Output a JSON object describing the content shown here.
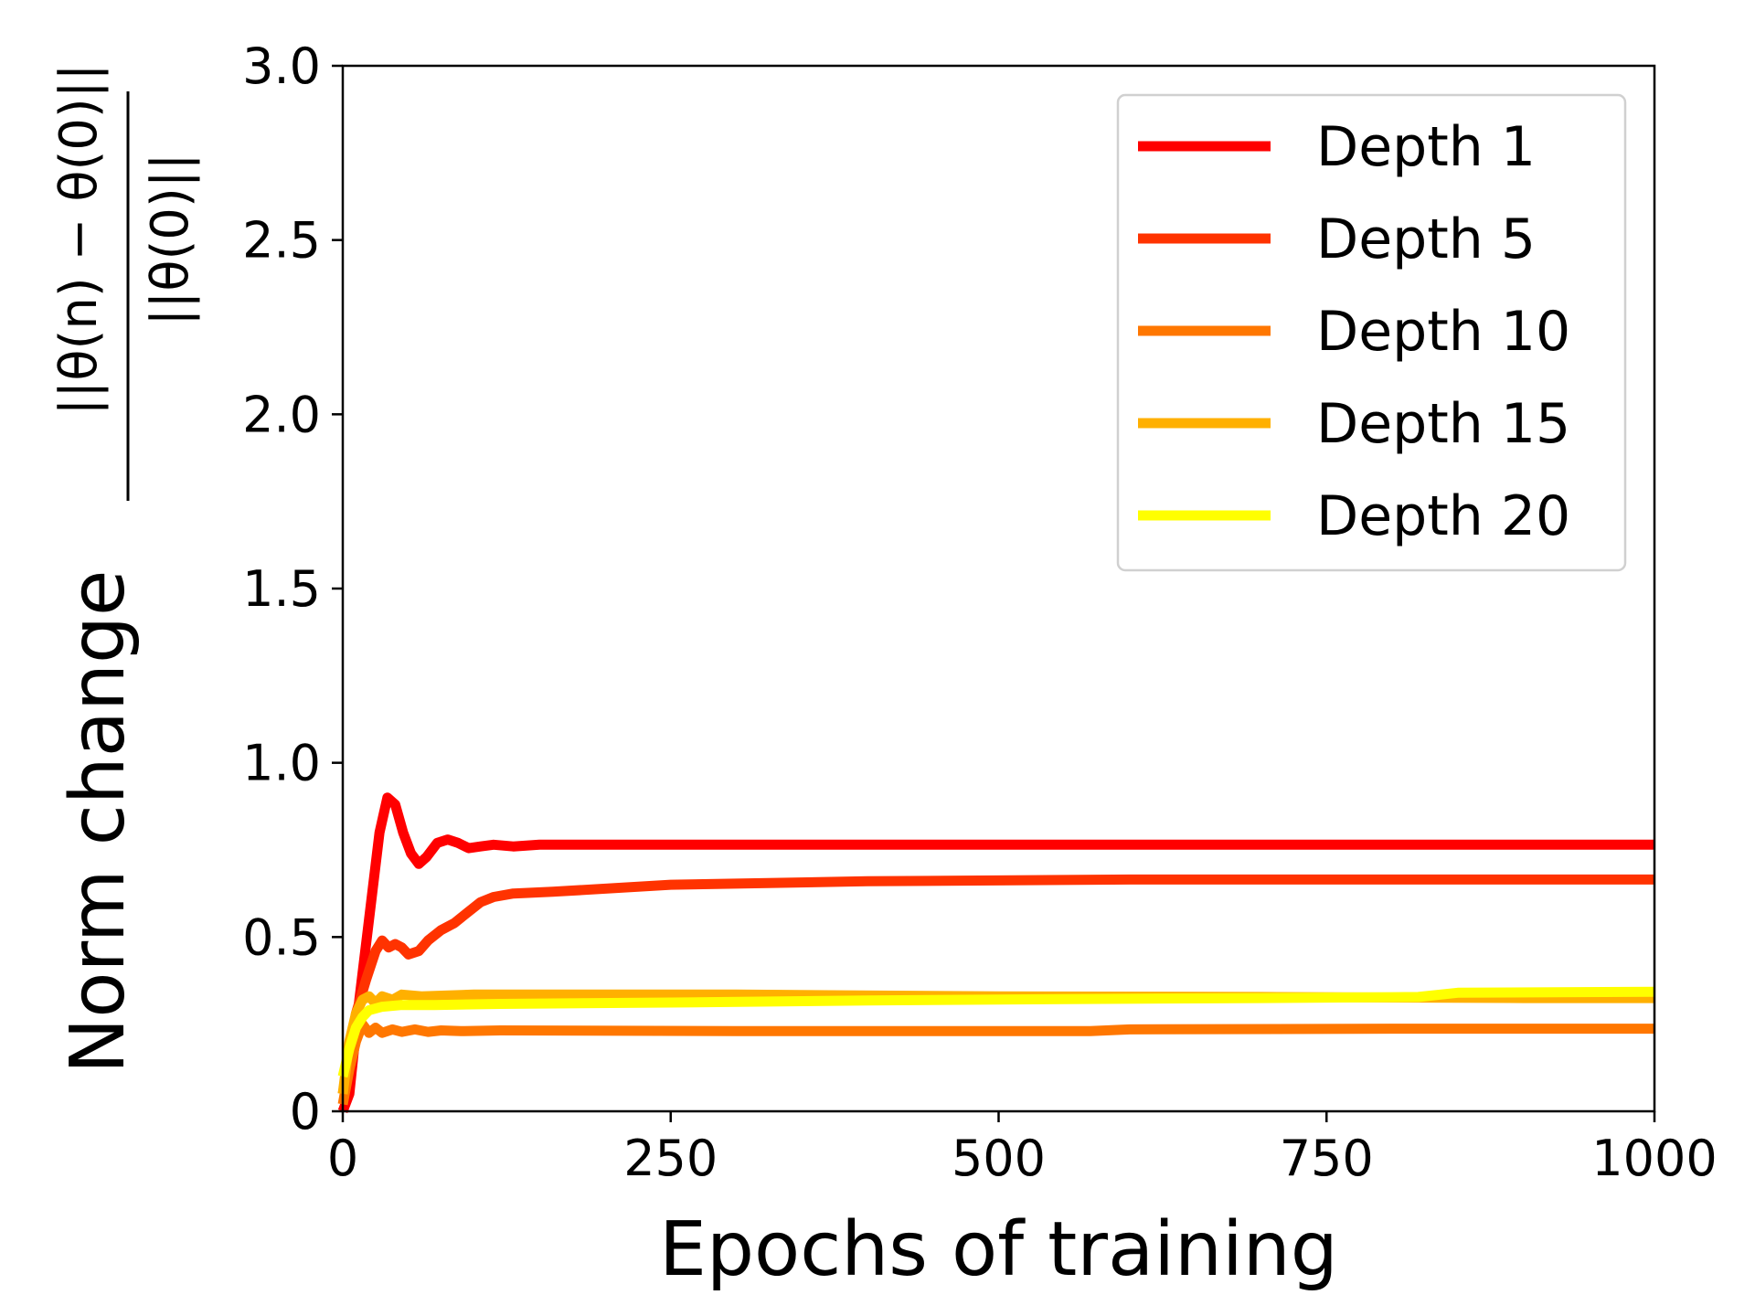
{
  "chart_data": {
    "type": "line",
    "xlabel": "Epochs of training",
    "ylabel": "Norm change",
    "ylabel_fraction": {
      "numerator": "||θ(n) − θ(0)||",
      "denominator": "||θ(0)||"
    },
    "xlim": [
      0,
      1000
    ],
    "ylim": [
      0,
      3.0
    ],
    "x_ticks": [
      "0",
      "250",
      "500",
      "750",
      "1000"
    ],
    "y_ticks": [
      "0",
      "0.5",
      "1.0",
      "1.5",
      "2.0",
      "2.5",
      "3.0"
    ],
    "grid": false,
    "legend_position": "top-right",
    "series": [
      {
        "name": "Depth 1",
        "color": "#ff0000",
        "points": [
          [
            0,
            0
          ],
          [
            5,
            0.05
          ],
          [
            12,
            0.3
          ],
          [
            20,
            0.55
          ],
          [
            28,
            0.8
          ],
          [
            34,
            0.9
          ],
          [
            40,
            0.88
          ],
          [
            46,
            0.8
          ],
          [
            52,
            0.74
          ],
          [
            58,
            0.71
          ],
          [
            64,
            0.73
          ],
          [
            72,
            0.77
          ],
          [
            80,
            0.78
          ],
          [
            88,
            0.77
          ],
          [
            96,
            0.755
          ],
          [
            105,
            0.76
          ],
          [
            115,
            0.765
          ],
          [
            130,
            0.76
          ],
          [
            150,
            0.765
          ],
          [
            200,
            0.765
          ],
          [
            400,
            0.765
          ],
          [
            600,
            0.765
          ],
          [
            800,
            0.765
          ],
          [
            1000,
            0.765
          ]
        ]
      },
      {
        "name": "Depth 5",
        "color": "#ff3300",
        "points": [
          [
            0,
            0.05
          ],
          [
            5,
            0.15
          ],
          [
            10,
            0.28
          ],
          [
            18,
            0.38
          ],
          [
            25,
            0.46
          ],
          [
            30,
            0.49
          ],
          [
            35,
            0.47
          ],
          [
            40,
            0.48
          ],
          [
            45,
            0.47
          ],
          [
            50,
            0.45
          ],
          [
            58,
            0.46
          ],
          [
            65,
            0.49
          ],
          [
            75,
            0.52
          ],
          [
            85,
            0.54
          ],
          [
            95,
            0.57
          ],
          [
            105,
            0.6
          ],
          [
            115,
            0.615
          ],
          [
            130,
            0.625
          ],
          [
            160,
            0.63
          ],
          [
            250,
            0.65
          ],
          [
            400,
            0.66
          ],
          [
            600,
            0.665
          ],
          [
            800,
            0.665
          ],
          [
            1000,
            0.665
          ]
        ]
      },
      {
        "name": "Depth 10",
        "color": "#ff7700",
        "points": [
          [
            0,
            0.02
          ],
          [
            5,
            0.12
          ],
          [
            10,
            0.2
          ],
          [
            15,
            0.25
          ],
          [
            20,
            0.225
          ],
          [
            25,
            0.24
          ],
          [
            30,
            0.225
          ],
          [
            38,
            0.235
          ],
          [
            45,
            0.228
          ],
          [
            55,
            0.235
          ],
          [
            65,
            0.228
          ],
          [
            75,
            0.232
          ],
          [
            90,
            0.23
          ],
          [
            120,
            0.232
          ],
          [
            300,
            0.23
          ],
          [
            570,
            0.23
          ],
          [
            600,
            0.235
          ],
          [
            800,
            0.237
          ],
          [
            1000,
            0.237
          ]
        ]
      },
      {
        "name": "Depth 15",
        "color": "#ffb000",
        "points": [
          [
            0,
            0.05
          ],
          [
            5,
            0.2
          ],
          [
            10,
            0.28
          ],
          [
            15,
            0.32
          ],
          [
            20,
            0.33
          ],
          [
            25,
            0.31
          ],
          [
            30,
            0.33
          ],
          [
            38,
            0.32
          ],
          [
            45,
            0.335
          ],
          [
            60,
            0.33
          ],
          [
            100,
            0.335
          ],
          [
            300,
            0.335
          ],
          [
            500,
            0.33
          ],
          [
            700,
            0.328
          ],
          [
            900,
            0.325
          ],
          [
            1000,
            0.325
          ]
        ]
      },
      {
        "name": "Depth 20",
        "color": "#ffff00",
        "points": [
          [
            0,
            0.1
          ],
          [
            5,
            0.18
          ],
          [
            10,
            0.24
          ],
          [
            15,
            0.27
          ],
          [
            20,
            0.29
          ],
          [
            30,
            0.3
          ],
          [
            45,
            0.305
          ],
          [
            70,
            0.305
          ],
          [
            120,
            0.308
          ],
          [
            250,
            0.312
          ],
          [
            400,
            0.318
          ],
          [
            550,
            0.322
          ],
          [
            700,
            0.325
          ],
          [
            820,
            0.328
          ],
          [
            850,
            0.34
          ],
          [
            1000,
            0.343
          ]
        ]
      }
    ]
  }
}
